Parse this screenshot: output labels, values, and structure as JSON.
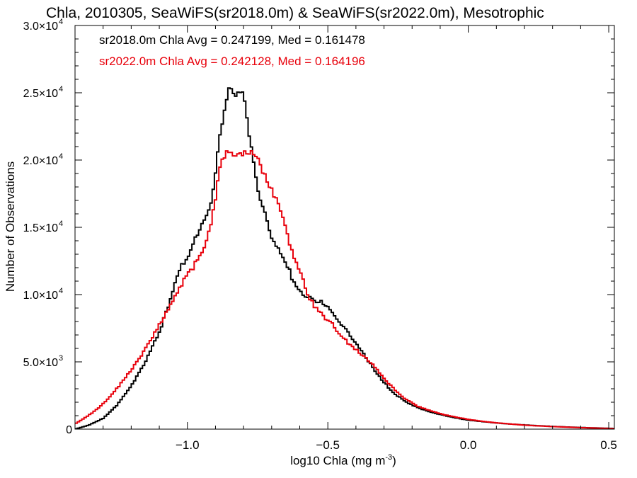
{
  "chart_data": {
    "type": "line",
    "title": "Chla, 2010305, SeaWiFS(sr2018.0m) & SeaWiFS(sr2022.0m), Mesotrophic",
    "xlabel_main": "log10 Chla (mg m",
    "xlabel_sup": "-3",
    "xlabel_end": ")",
    "ylabel": "Number of Observations",
    "xlim": [
      -1.4,
      0.52
    ],
    "ylim": [
      0,
      30000
    ],
    "x_ticks": [
      -1.0,
      -0.5,
      0.0,
      0.5
    ],
    "x_tick_labels": [
      "−1.0",
      "−0.5",
      "0.0",
      "0.5"
    ],
    "y_ticks": [
      0,
      5000,
      10000,
      15000,
      20000,
      25000,
      30000
    ],
    "y_tick_labels": [
      {
        "base": "0",
        "exp": ""
      },
      {
        "base": "5.0×10",
        "exp": "3"
      },
      {
        "base": "1.0×10",
        "exp": "4"
      },
      {
        "base": "1.5×10",
        "exp": "4"
      },
      {
        "base": "2.0×10",
        "exp": "4"
      },
      {
        "base": "2.5×10",
        "exp": "4"
      },
      {
        "base": "3.0×10",
        "exp": "4"
      }
    ],
    "grid": false,
    "step_style": "histogram",
    "annotations": [
      {
        "text": "sr2018.0m Chla Avg = 0.247199, Med = 0.161478",
        "color": "#000000"
      },
      {
        "text": "sr2022.0m Chla Avg = 0.242128, Med = 0.164196",
        "color": "#e8000b"
      }
    ],
    "series": [
      {
        "color": "#000000",
        "points": [
          [
            -1.4,
            0
          ],
          [
            -1.35,
            300
          ],
          [
            -1.3,
            800
          ],
          [
            -1.25,
            1800
          ],
          [
            -1.2,
            3200
          ],
          [
            -1.15,
            5000
          ],
          [
            -1.1,
            7200
          ],
          [
            -1.07,
            9000
          ],
          [
            -1.05,
            10500
          ],
          [
            -1.03,
            11800
          ],
          [
            -1.0,
            12800
          ],
          [
            -0.98,
            13800
          ],
          [
            -0.96,
            14600
          ],
          [
            -0.94,
            15400
          ],
          [
            -0.92,
            16600
          ],
          [
            -0.9,
            18800
          ],
          [
            -0.89,
            20800
          ],
          [
            -0.88,
            22300
          ],
          [
            -0.87,
            23600
          ],
          [
            -0.86,
            24600
          ],
          [
            -0.85,
            25300
          ],
          [
            -0.84,
            25200
          ],
          [
            -0.83,
            24800
          ],
          [
            -0.82,
            25000
          ],
          [
            -0.81,
            24900
          ],
          [
            -0.8,
            25000
          ],
          [
            -0.79,
            23200
          ],
          [
            -0.78,
            22000
          ],
          [
            -0.77,
            20800
          ],
          [
            -0.76,
            19200
          ],
          [
            -0.75,
            18000
          ],
          [
            -0.74,
            17200
          ],
          [
            -0.73,
            16500
          ],
          [
            -0.72,
            15700
          ],
          [
            -0.71,
            15000
          ],
          [
            -0.7,
            14300
          ],
          [
            -0.69,
            14000
          ],
          [
            -0.68,
            13600
          ],
          [
            -0.67,
            13200
          ],
          [
            -0.66,
            12800
          ],
          [
            -0.65,
            12500
          ],
          [
            -0.64,
            12000
          ],
          [
            -0.63,
            11400
          ],
          [
            -0.62,
            10800
          ],
          [
            -0.61,
            10500
          ],
          [
            -0.6,
            10200
          ],
          [
            -0.58,
            9800
          ],
          [
            -0.56,
            9700
          ],
          [
            -0.54,
            9500
          ],
          [
            -0.52,
            9400
          ],
          [
            -0.5,
            9000
          ],
          [
            -0.48,
            8600
          ],
          [
            -0.46,
            8000
          ],
          [
            -0.44,
            7500
          ],
          [
            -0.42,
            6900
          ],
          [
            -0.4,
            6400
          ],
          [
            -0.38,
            5800
          ],
          [
            -0.36,
            5200
          ],
          [
            -0.34,
            4600
          ],
          [
            -0.32,
            4000
          ],
          [
            -0.3,
            3500
          ],
          [
            -0.28,
            3000
          ],
          [
            -0.26,
            2600
          ],
          [
            -0.24,
            2300
          ],
          [
            -0.22,
            2000
          ],
          [
            -0.2,
            1800
          ],
          [
            -0.18,
            1600
          ],
          [
            -0.16,
            1450
          ],
          [
            -0.14,
            1300
          ],
          [
            -0.12,
            1180
          ],
          [
            -0.1,
            1080
          ],
          [
            -0.08,
            1000
          ],
          [
            -0.06,
            900
          ],
          [
            -0.04,
            820
          ],
          [
            -0.02,
            740
          ],
          [
            0.0,
            670
          ],
          [
            0.05,
            560
          ],
          [
            0.1,
            460
          ],
          [
            0.15,
            380
          ],
          [
            0.2,
            310
          ],
          [
            0.25,
            250
          ],
          [
            0.3,
            200
          ],
          [
            0.35,
            160
          ],
          [
            0.4,
            120
          ],
          [
            0.45,
            90
          ],
          [
            0.5,
            60
          ],
          [
            0.52,
            50
          ]
        ]
      },
      {
        "color": "#e8000b",
        "points": [
          [
            -1.4,
            400
          ],
          [
            -1.36,
            900
          ],
          [
            -1.32,
            1500
          ],
          [
            -1.28,
            2300
          ],
          [
            -1.24,
            3300
          ],
          [
            -1.2,
            4400
          ],
          [
            -1.16,
            5600
          ],
          [
            -1.12,
            7000
          ],
          [
            -1.08,
            8500
          ],
          [
            -1.05,
            9700
          ],
          [
            -1.02,
            10800
          ],
          [
            -1.0,
            11400
          ],
          [
            -0.98,
            12000
          ],
          [
            -0.96,
            12800
          ],
          [
            -0.94,
            13600
          ],
          [
            -0.92,
            14800
          ],
          [
            -0.9,
            17000
          ],
          [
            -0.89,
            18800
          ],
          [
            -0.88,
            19800
          ],
          [
            -0.87,
            20300
          ],
          [
            -0.86,
            20800
          ],
          [
            -0.85,
            20600
          ],
          [
            -0.84,
            20500
          ],
          [
            -0.83,
            20200
          ],
          [
            -0.82,
            20300
          ],
          [
            -0.81,
            20500
          ],
          [
            -0.8,
            20600
          ],
          [
            -0.79,
            20600
          ],
          [
            -0.78,
            20400
          ],
          [
            -0.77,
            20600
          ],
          [
            -0.76,
            20400
          ],
          [
            -0.75,
            20000
          ],
          [
            -0.74,
            19500
          ],
          [
            -0.73,
            19200
          ],
          [
            -0.72,
            18700
          ],
          [
            -0.71,
            18200
          ],
          [
            -0.7,
            17800
          ],
          [
            -0.69,
            17400
          ],
          [
            -0.68,
            17000
          ],
          [
            -0.67,
            16400
          ],
          [
            -0.66,
            15600
          ],
          [
            -0.65,
            15000
          ],
          [
            -0.64,
            14200
          ],
          [
            -0.63,
            13300
          ],
          [
            -0.62,
            12700
          ],
          [
            -0.61,
            12200
          ],
          [
            -0.6,
            11700
          ],
          [
            -0.59,
            11200
          ],
          [
            -0.58,
            10600
          ],
          [
            -0.57,
            10000
          ],
          [
            -0.56,
            9600
          ],
          [
            -0.55,
            9200
          ],
          [
            -0.54,
            8900
          ],
          [
            -0.53,
            8700
          ],
          [
            -0.52,
            8500
          ],
          [
            -0.51,
            8300
          ],
          [
            -0.5,
            8100
          ],
          [
            -0.48,
            7700
          ],
          [
            -0.46,
            7100
          ],
          [
            -0.44,
            6700
          ],
          [
            -0.42,
            6200
          ],
          [
            -0.4,
            5900
          ],
          [
            -0.38,
            5500
          ],
          [
            -0.36,
            5200
          ],
          [
            -0.34,
            4800
          ],
          [
            -0.32,
            4300
          ],
          [
            -0.3,
            3800
          ],
          [
            -0.28,
            3300
          ],
          [
            -0.26,
            2900
          ],
          [
            -0.24,
            2500
          ],
          [
            -0.22,
            2200
          ],
          [
            -0.2,
            1950
          ],
          [
            -0.18,
            1700
          ],
          [
            -0.16,
            1550
          ],
          [
            -0.14,
            1400
          ],
          [
            -0.12,
            1280
          ],
          [
            -0.1,
            1150
          ],
          [
            -0.08,
            1050
          ],
          [
            -0.06,
            960
          ],
          [
            -0.04,
            880
          ],
          [
            -0.02,
            800
          ],
          [
            0.0,
            720
          ],
          [
            0.05,
            580
          ],
          [
            0.1,
            470
          ],
          [
            0.15,
            380
          ],
          [
            0.2,
            300
          ],
          [
            0.25,
            240
          ],
          [
            0.3,
            190
          ],
          [
            0.35,
            150
          ],
          [
            0.4,
            110
          ],
          [
            0.45,
            80
          ],
          [
            0.5,
            50
          ],
          [
            0.52,
            40
          ]
        ]
      }
    ]
  }
}
